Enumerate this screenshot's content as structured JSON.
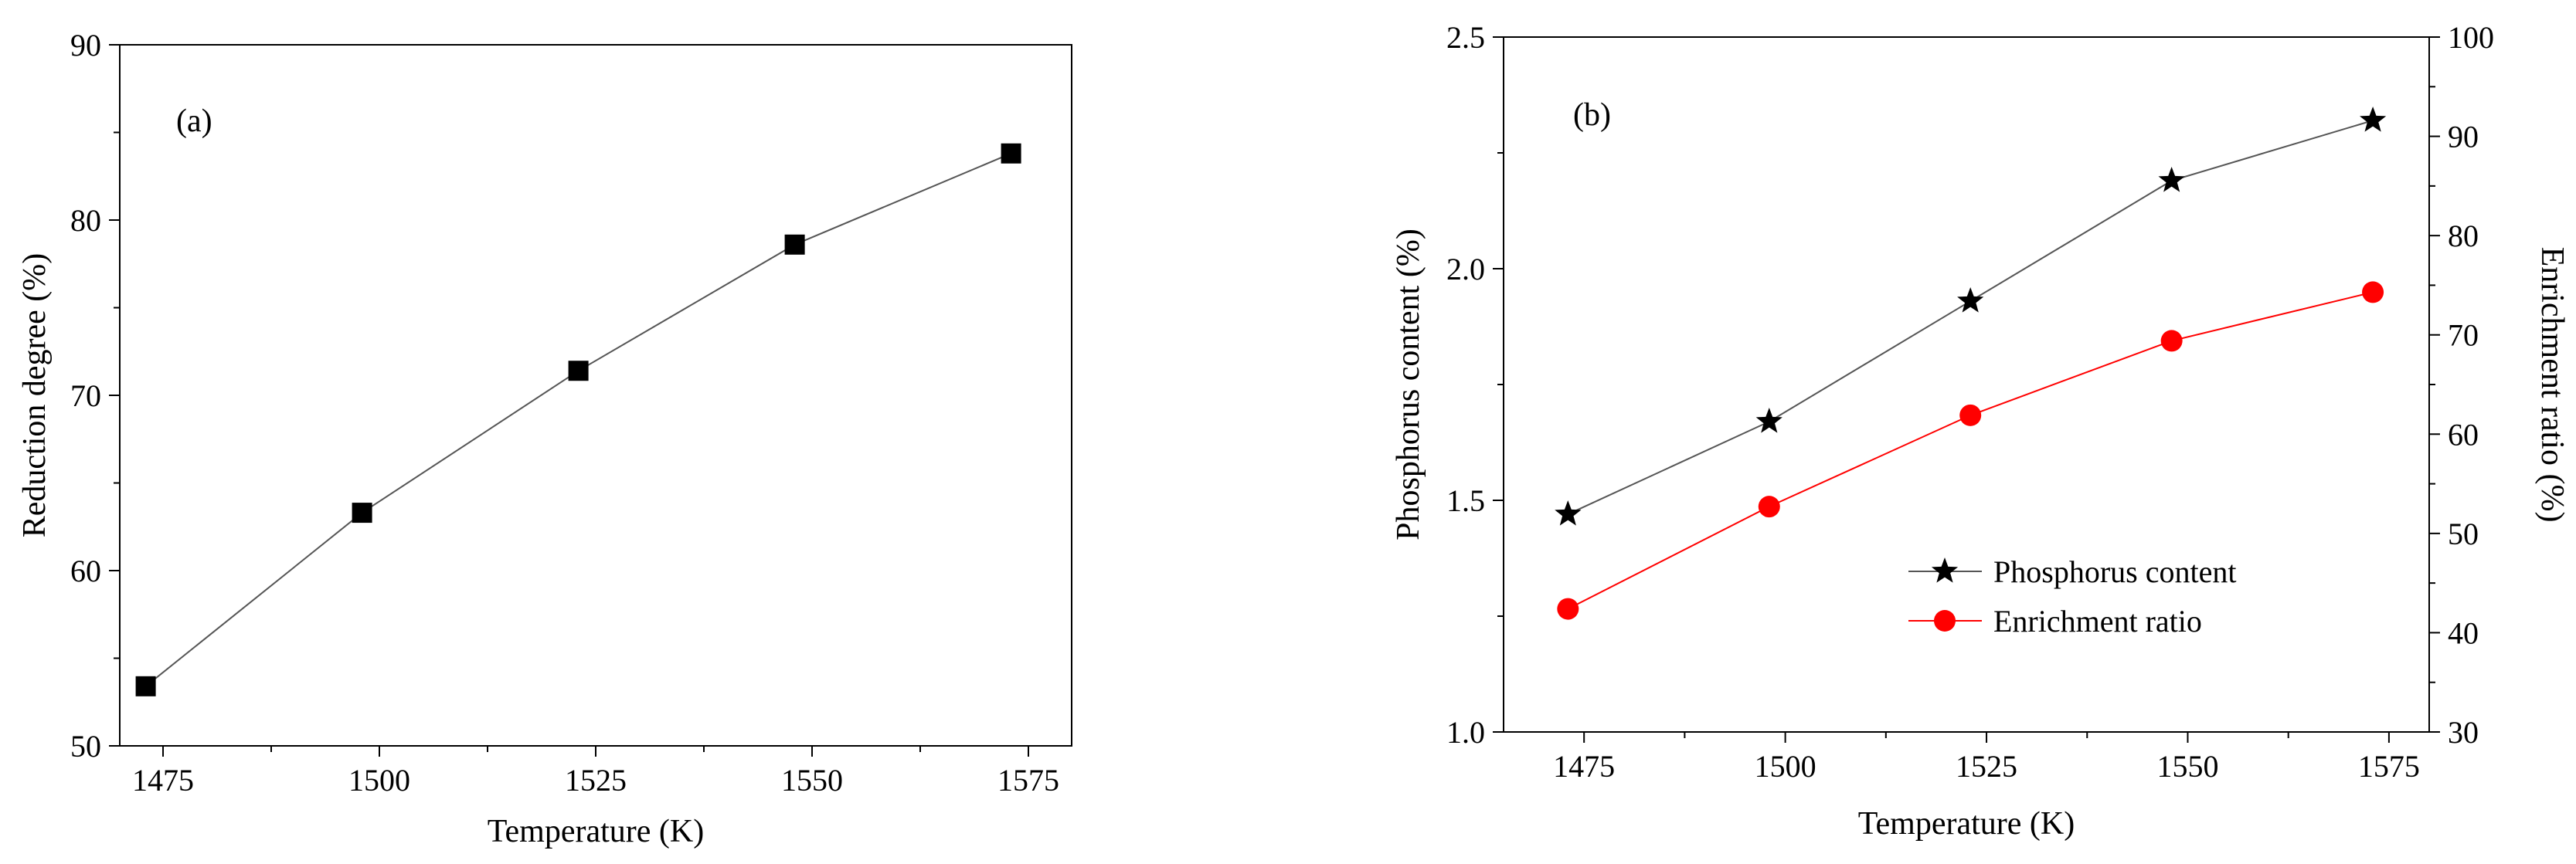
{
  "chart_data": [
    {
      "type": "line",
      "panel_label": "(a)",
      "xlabel": "Temperature (K)",
      "ylabel": "Reduction degree (%)",
      "xlim": [
        1470,
        1580
      ],
      "ylim": [
        50,
        90
      ],
      "x_ticks": [
        1475,
        1500,
        1525,
        1550,
        1575
      ],
      "y_ticks": [
        50,
        60,
        70,
        80,
        90
      ],
      "grid": false,
      "series": [
        {
          "marker": "square",
          "color": "#000000",
          "line_color": "#555555",
          "x": [
            1473,
            1498,
            1523,
            1548,
            1573
          ],
          "y": [
            53.4,
            63.3,
            71.4,
            78.6,
            83.8
          ]
        }
      ]
    },
    {
      "type": "line",
      "panel_label": "(b)",
      "xlabel": "Temperature (K)",
      "ylabel": "Phosphorus content (%)",
      "y2label": "Enrichment ratio (%)",
      "xlim": [
        1465,
        1580
      ],
      "ylim": [
        1.0,
        2.5
      ],
      "y2lim": [
        30,
        100
      ],
      "x_ticks": [
        1475,
        1500,
        1525,
        1550,
        1575
      ],
      "y_ticks": [
        "1.0",
        "1.5",
        "2.0",
        "2.5"
      ],
      "y2_ticks": [
        30,
        40,
        50,
        60,
        70,
        80,
        90,
        100
      ],
      "grid": false,
      "legend_position": "bottom-right",
      "series": [
        {
          "name": "Phosphorus content",
          "axis": "left",
          "marker": "star",
          "color": "#000000",
          "line_color": "#555555",
          "x": [
            1473,
            1498,
            1523,
            1548,
            1573
          ],
          "y": [
            1.47,
            1.67,
            1.93,
            2.19,
            2.32
          ]
        },
        {
          "name": "Enrichment ratio",
          "axis": "right",
          "marker": "circle",
          "color": "#ff0000",
          "line_color": "#ff0000",
          "x": [
            1473,
            1498,
            1523,
            1548,
            1573
          ],
          "y": [
            42.4,
            52.7,
            61.9,
            69.4,
            74.3
          ]
        }
      ]
    }
  ]
}
